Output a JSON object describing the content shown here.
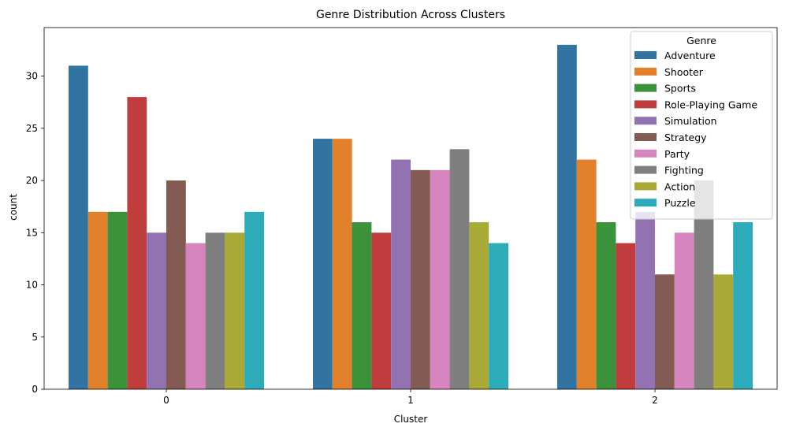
{
  "chart_data": {
    "type": "bar",
    "title": "Genre Distribution Across Clusters",
    "xlabel": "Cluster",
    "ylabel": "count",
    "categories": [
      "0",
      "1",
      "2"
    ],
    "ylim": [
      0,
      34.65
    ],
    "yticks": [
      0,
      5,
      10,
      15,
      20,
      25,
      30
    ],
    "grid": false,
    "legend": {
      "title": "Genre",
      "placement": "top-right"
    },
    "series": [
      {
        "name": "Adventure",
        "color": "#3274a1",
        "values": [
          31,
          24,
          33
        ]
      },
      {
        "name": "Shooter",
        "color": "#e1812c",
        "values": [
          17,
          24,
          22
        ]
      },
      {
        "name": "Sports",
        "color": "#3a923a",
        "values": [
          17,
          16,
          16
        ]
      },
      {
        "name": "Role-Playing Game",
        "color": "#c03d3e",
        "values": [
          28,
          15,
          14
        ]
      },
      {
        "name": "Simulation",
        "color": "#9372b2",
        "values": [
          15,
          22,
          17
        ]
      },
      {
        "name": "Strategy",
        "color": "#845b53",
        "values": [
          20,
          21,
          11
        ]
      },
      {
        "name": "Party",
        "color": "#d684bd",
        "values": [
          14,
          21,
          15
        ]
      },
      {
        "name": "Fighting",
        "color": "#7f7f7f",
        "values": [
          15,
          23,
          20
        ]
      },
      {
        "name": "Action",
        "color": "#a9aa35",
        "values": [
          15,
          16,
          11
        ]
      },
      {
        "name": "Puzzle",
        "color": "#2eabb8",
        "values": [
          17,
          14,
          16
        ]
      }
    ]
  }
}
